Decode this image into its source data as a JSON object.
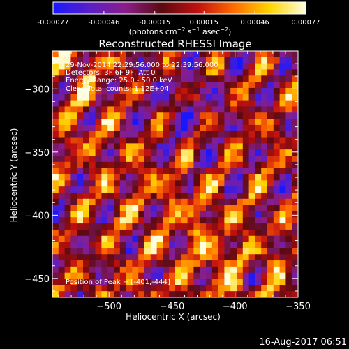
{
  "chart_data": {
    "type": "heatmap",
    "title": "Reconstructed RHESSI Image",
    "xlabel": "Heliocentric X (arcsec)",
    "ylabel": "Heliocentric Y (arcsec)",
    "xlim": [
      -545,
      -350
    ],
    "ylim": [
      -465,
      -270
    ],
    "x_ticks": [
      -500,
      -450,
      -400,
      -350
    ],
    "x_tick_labels": [
      "−500",
      "−450",
      "−400",
      "−350"
    ],
    "y_ticks": [
      -300,
      -350,
      -400,
      -450
    ],
    "y_tick_labels": [
      "−300",
      "−350",
      "−400",
      "−450"
    ],
    "colorbar": {
      "range": [
        -0.00077,
        0.00077
      ],
      "ticks": [
        -0.00077,
        -0.00046,
        -0.00015,
        0.00015,
        0.00046,
        0.00077
      ],
      "tick_labels": [
        "-0.00077",
        "-0.00046",
        "-0.00015",
        "0.00015",
        "0.00046",
        "0.00077"
      ],
      "units_main": "(photons cm",
      "units_sup1": "−2",
      "units_mid": " s",
      "units_sup2": "−1",
      "units_end": " asec",
      "units_sup3": "−2",
      "units_close": ")",
      "colormap_stops": [
        "#1818ff",
        "#5a1ec8",
        "#8a1e8a",
        "#5a0a10",
        "#c01010",
        "#ff6a00",
        "#ffd400",
        "#ffffe0"
      ]
    },
    "annotations": [
      "29-Nov-2014 22:29:56.000 to 22:39:56.000",
      "Detectors: 3F 6F 9F, Att 0",
      "Energy Range: 25.0 - 50.0 keV",
      "Clean     Total counts: 1.12E+04"
    ],
    "peak_label": "Position of Peak = [-401,-444]",
    "peak_position": [
      -401,
      -444
    ],
    "grid": false,
    "legend": "none"
  },
  "footer": {
    "timestamp": "16-Aug-2017 06:51"
  }
}
